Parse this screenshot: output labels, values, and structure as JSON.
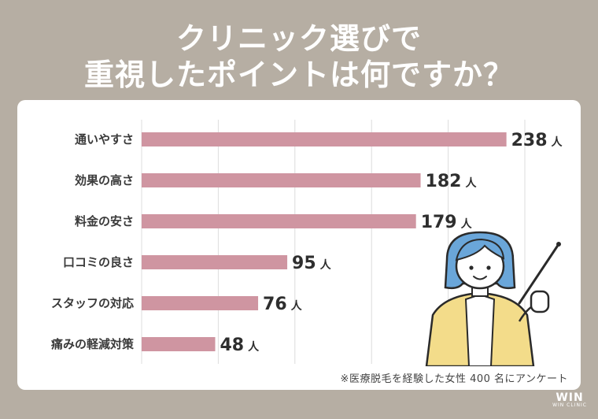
{
  "header": {
    "title_line1": "クリニック選びで",
    "title_line2": "重視したポイントは何ですか？"
  },
  "chart_data": {
    "type": "bar",
    "orientation": "horizontal",
    "title": "クリニック選びで重視したポイントは何ですか？",
    "categories": [
      "通いやすさ",
      "効果の高さ",
      "料金の安さ",
      "口コミの良さ",
      "スタッフの対応",
      "痛みの軽減対策"
    ],
    "values": [
      238,
      182,
      179,
      95,
      76,
      48
    ],
    "unit": "人",
    "xlim": [
      0,
      250
    ],
    "grid": true,
    "bar_color": "#cf95a1"
  },
  "footnote": "※医療脱毛を経験した女性 400 名にアンケート",
  "logo": {
    "mark": "WIN",
    "sub": "WIN CLINIC"
  },
  "colors": {
    "background": "#b6aea3",
    "card": "#ffffff",
    "bar": "#cf95a1",
    "grid": "#dcdcdc"
  }
}
